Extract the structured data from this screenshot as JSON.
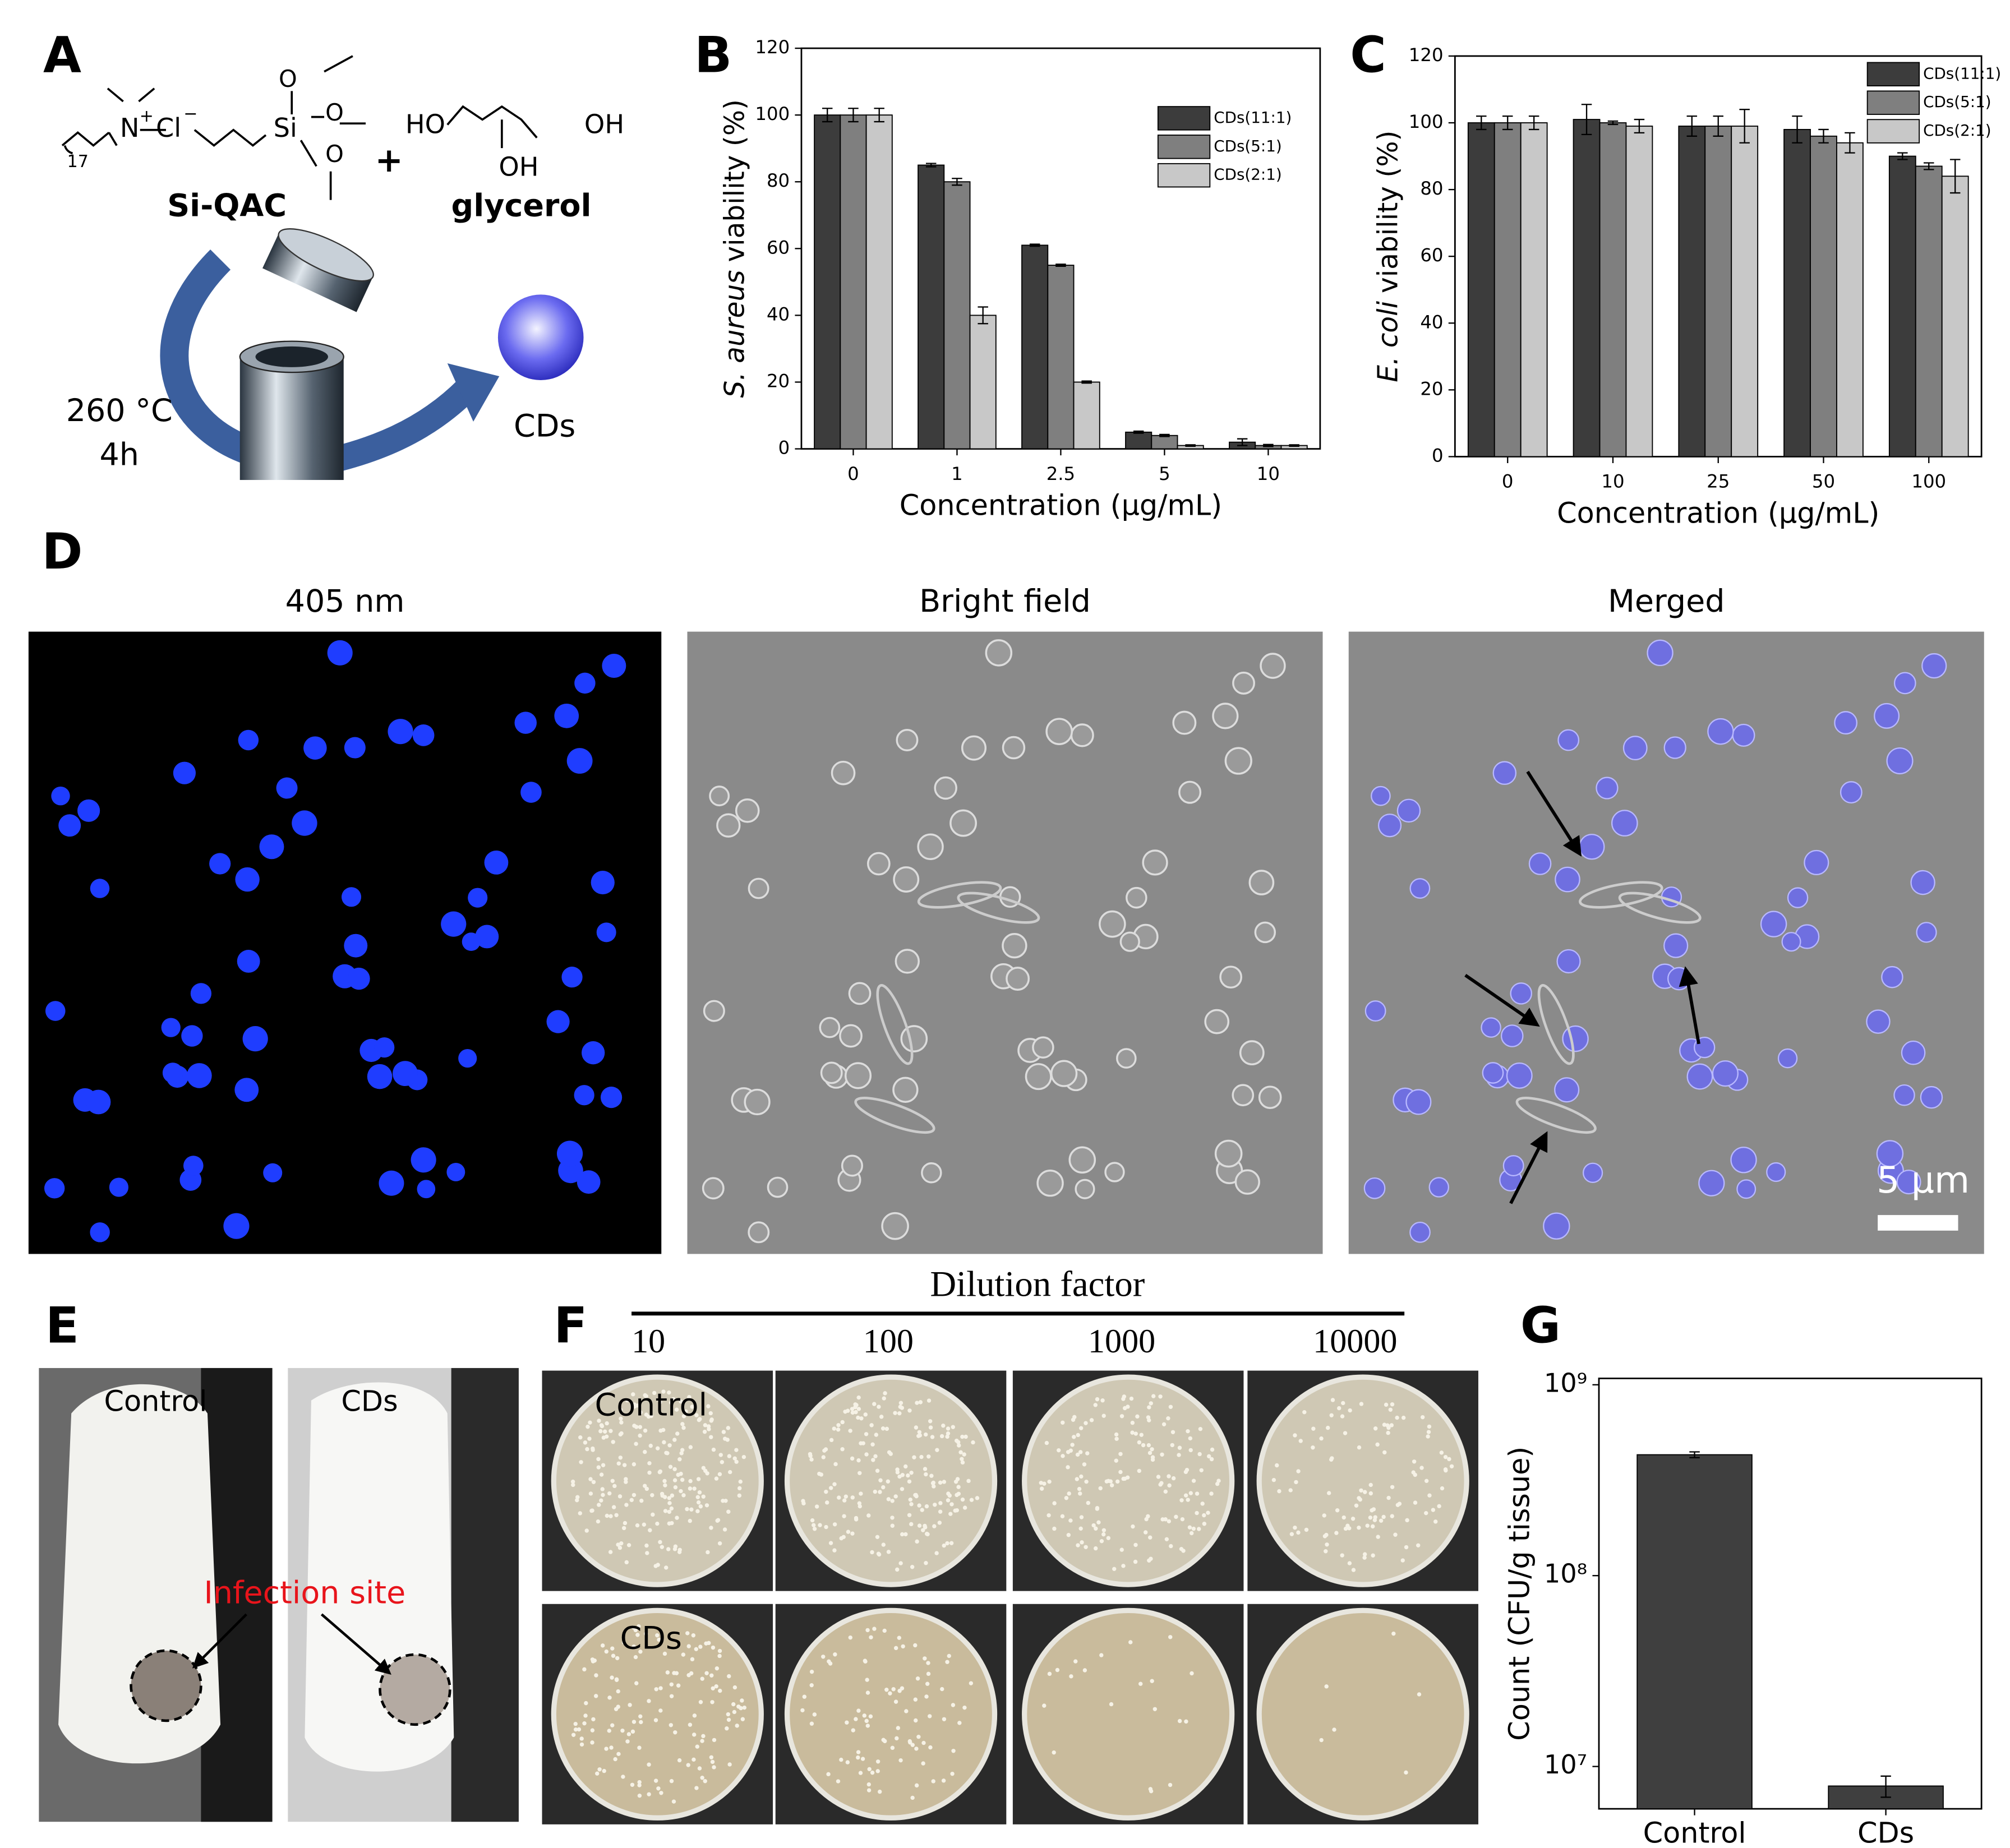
{
  "panel_labels": [
    "A",
    "B",
    "C",
    "D",
    "E",
    "F",
    "G"
  ],
  "panel_a": {
    "reagent_1": "Si-QAC",
    "reagent_2": "glycerol",
    "plus": "+",
    "temperature": "260 °C",
    "time": "4h",
    "product": "CDs",
    "atoms": [
      "N",
      "+",
      "Cl",
      "−",
      "17",
      "Si",
      "O",
      "O",
      "O",
      "HO",
      "OH",
      "OH"
    ]
  },
  "chart_data": [
    {
      "type": "bar",
      "ylabel": [
        {
          "text": "S. aureus",
          "italic": true
        },
        {
          "text": "viability (%)"
        }
      ],
      "xlabel": "Concentration (μg/mL)",
      "categories": [
        "0",
        "1",
        "2.5",
        "5",
        "10"
      ],
      "ylim": [
        0,
        120
      ],
      "yticks": [
        0,
        20,
        40,
        60,
        80,
        100,
        120
      ],
      "legend": "upper right",
      "series": [
        {
          "name": "CDs(11:1)",
          "color": "#3c3c3c",
          "values": [
            100,
            85,
            61,
            5,
            2
          ],
          "errors": [
            2,
            0.5,
            0.3,
            0.3,
            1
          ]
        },
        {
          "name": "CDs(5:1)",
          "color": "#7f7f7f",
          "values": [
            100,
            80,
            55,
            4,
            1
          ],
          "errors": [
            2,
            1,
            0.3,
            0.3,
            0.3
          ]
        },
        {
          "name": "CDs(2:1)",
          "color": "#c8c8c8",
          "values": [
            100,
            40,
            20,
            1,
            1
          ],
          "errors": [
            2,
            2.5,
            0.3,
            0.2,
            0.2
          ]
        }
      ]
    },
    {
      "type": "bar",
      "ylabel": [
        {
          "text": "E. coli",
          "italic": true
        },
        {
          "text": "viability (%)"
        }
      ],
      "xlabel": "Concentration (μg/mL)",
      "categories": [
        "0",
        "10",
        "25",
        "50",
        "100"
      ],
      "ylim": [
        0,
        120
      ],
      "yticks": [
        0,
        20,
        40,
        60,
        80,
        100,
        120
      ],
      "legend": "upper right",
      "series": [
        {
          "name": "CDs(11:1)",
          "color": "#3c3c3c",
          "values": [
            100,
            101,
            99,
            98,
            90
          ],
          "errors": [
            2,
            4.5,
            3,
            4,
            1
          ]
        },
        {
          "name": "CDs(5:1)",
          "color": "#7f7f7f",
          "values": [
            100,
            100,
            99,
            96,
            87
          ],
          "errors": [
            2,
            0.5,
            3,
            2,
            1
          ]
        },
        {
          "name": "CDs(2:1)",
          "color": "#c8c8c8",
          "values": [
            100,
            99,
            99,
            94,
            84
          ],
          "errors": [
            2,
            2,
            5,
            3,
            5
          ]
        }
      ]
    },
    {
      "type": "bar",
      "ylabel": [
        {
          "text": "Count (CFU/g tissue)"
        }
      ],
      "log_scale": true,
      "categories": [
        "Control",
        "CDs"
      ],
      "color": "#3f3f3f",
      "values": [
        430000000,
        7900000
      ],
      "errors": [
        15000000,
        1000000
      ],
      "ylim": [
        6000000,
        1080000000
      ],
      "yticks": [
        {
          "value": 10000000,
          "label": "10⁷"
        },
        {
          "value": 100000000,
          "label": "10⁸"
        },
        {
          "value": 1000000000,
          "label": "10⁹"
        }
      ]
    }
  ],
  "panel_d": {
    "titles": [
      "405 nm",
      "Bright field",
      "Merged"
    ],
    "scale_bar": "5 μm"
  },
  "panel_e": {
    "labels": [
      "Control",
      "CDs"
    ],
    "annotation": "Infection site"
  },
  "panel_f": {
    "title": "Dilution factor",
    "dilutions": [
      "10",
      "100",
      "1000",
      "10000"
    ],
    "rows": [
      "Control",
      "CDs"
    ]
  }
}
